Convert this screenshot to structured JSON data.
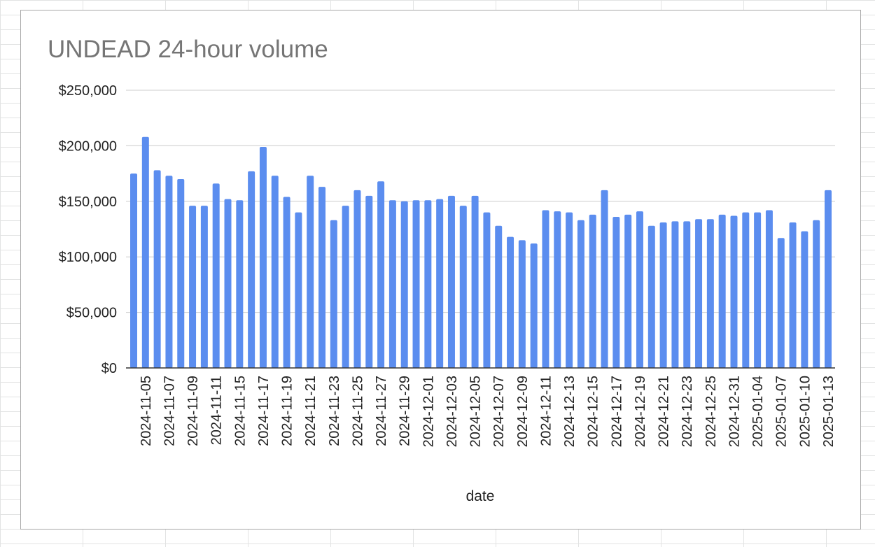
{
  "chart_data": {
    "type": "bar",
    "title": "UNDEAD 24-hour volume",
    "xlabel": "date",
    "ylabel": "",
    "ylim": [
      0,
      250000
    ],
    "yticks": [
      0,
      50000,
      100000,
      150000,
      200000,
      250000
    ],
    "ytick_labels": [
      "$0",
      "$50,000",
      "$100,000",
      "$150,000",
      "$200,000",
      "$250,000"
    ],
    "grid": true,
    "legend": "none",
    "bar_color": "#5b8def",
    "xtick_labels": [
      "2024-11-05",
      "2024-11-07",
      "2024-11-09",
      "2024-11-11",
      "2024-11-15",
      "2024-11-17",
      "2024-11-19",
      "2024-11-21",
      "2024-11-23",
      "2024-11-25",
      "2024-11-27",
      "2024-11-29",
      "2024-12-01",
      "2024-12-03",
      "2024-12-05",
      "2024-12-07",
      "2024-12-09",
      "2024-12-11",
      "2024-12-13",
      "2024-12-15",
      "2024-12-17",
      "2024-12-19",
      "2024-12-21",
      "2024-12-23",
      "2024-12-25",
      "2024-12-31",
      "2025-01-04",
      "2025-01-07",
      "2025-01-10",
      "2025-01-13"
    ],
    "values": [
      175000,
      208000,
      178000,
      173000,
      170000,
      146000,
      146000,
      166000,
      152000,
      151000,
      177000,
      199000,
      173000,
      154000,
      140000,
      173000,
      163000,
      133000,
      146000,
      160000,
      155000,
      168000,
      151000,
      150000,
      151000,
      151000,
      152000,
      155000,
      146000,
      155000,
      140000,
      128000,
      118000,
      115000,
      112000,
      142000,
      141000,
      140000,
      133000,
      138000,
      160000,
      136000,
      138000,
      141000,
      128000,
      131000,
      132000,
      132000,
      134000,
      134000,
      138000,
      137000,
      140000,
      140000,
      142000,
      117000,
      131000,
      123000,
      133000,
      160000
    ]
  }
}
